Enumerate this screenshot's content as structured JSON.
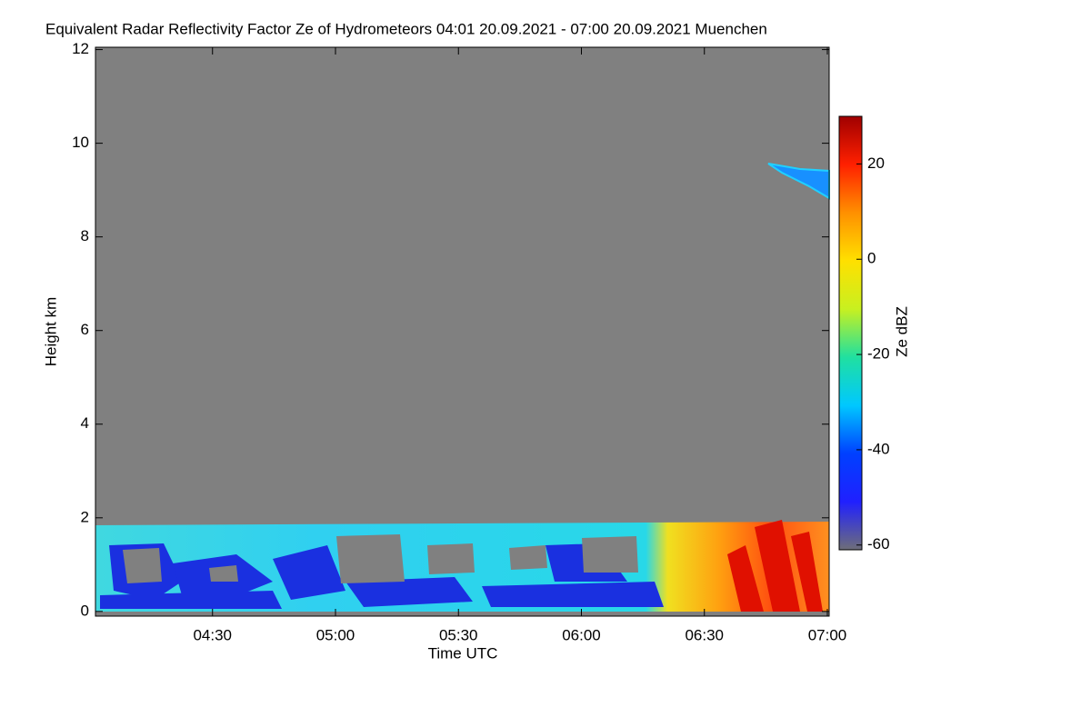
{
  "chart_data": {
    "type": "heatmap",
    "title": "Equivalent Radar Reflectivity Factor Ze of Hydrometeors   04:01 20.09.2021 - 07:00 20.09.2021 Muenchen",
    "x_label": "Time UTC",
    "y_label": "Height km",
    "colorbar_label": "Ze dBZ",
    "xlim": [
      {
        "value": 241,
        "label": "04:01"
      },
      {
        "value": 420,
        "label": "07:00"
      }
    ],
    "xticks": [
      {
        "value": 270,
        "label": "04:30"
      },
      {
        "value": 300,
        "label": "05:00"
      },
      {
        "value": 330,
        "label": "05:30"
      },
      {
        "value": 360,
        "label": "06:00"
      },
      {
        "value": 390,
        "label": "06:30"
      },
      {
        "value": 420,
        "label": "07:00"
      }
    ],
    "ylim": [
      -0.1,
      12.05
    ],
    "yticks": [
      0,
      2,
      4,
      6,
      8,
      10,
      12
    ],
    "clim": [
      -61,
      30
    ],
    "cticks": [
      -60,
      -40,
      -20,
      0,
      20
    ],
    "colormap": [
      "#6e6e78",
      "#2020ff",
      "#0040ff",
      "#00c8ff",
      "#20e0a0",
      "#c8f020",
      "#ffe000",
      "#ff9000",
      "#ff2000",
      "#a00000"
    ]
  }
}
